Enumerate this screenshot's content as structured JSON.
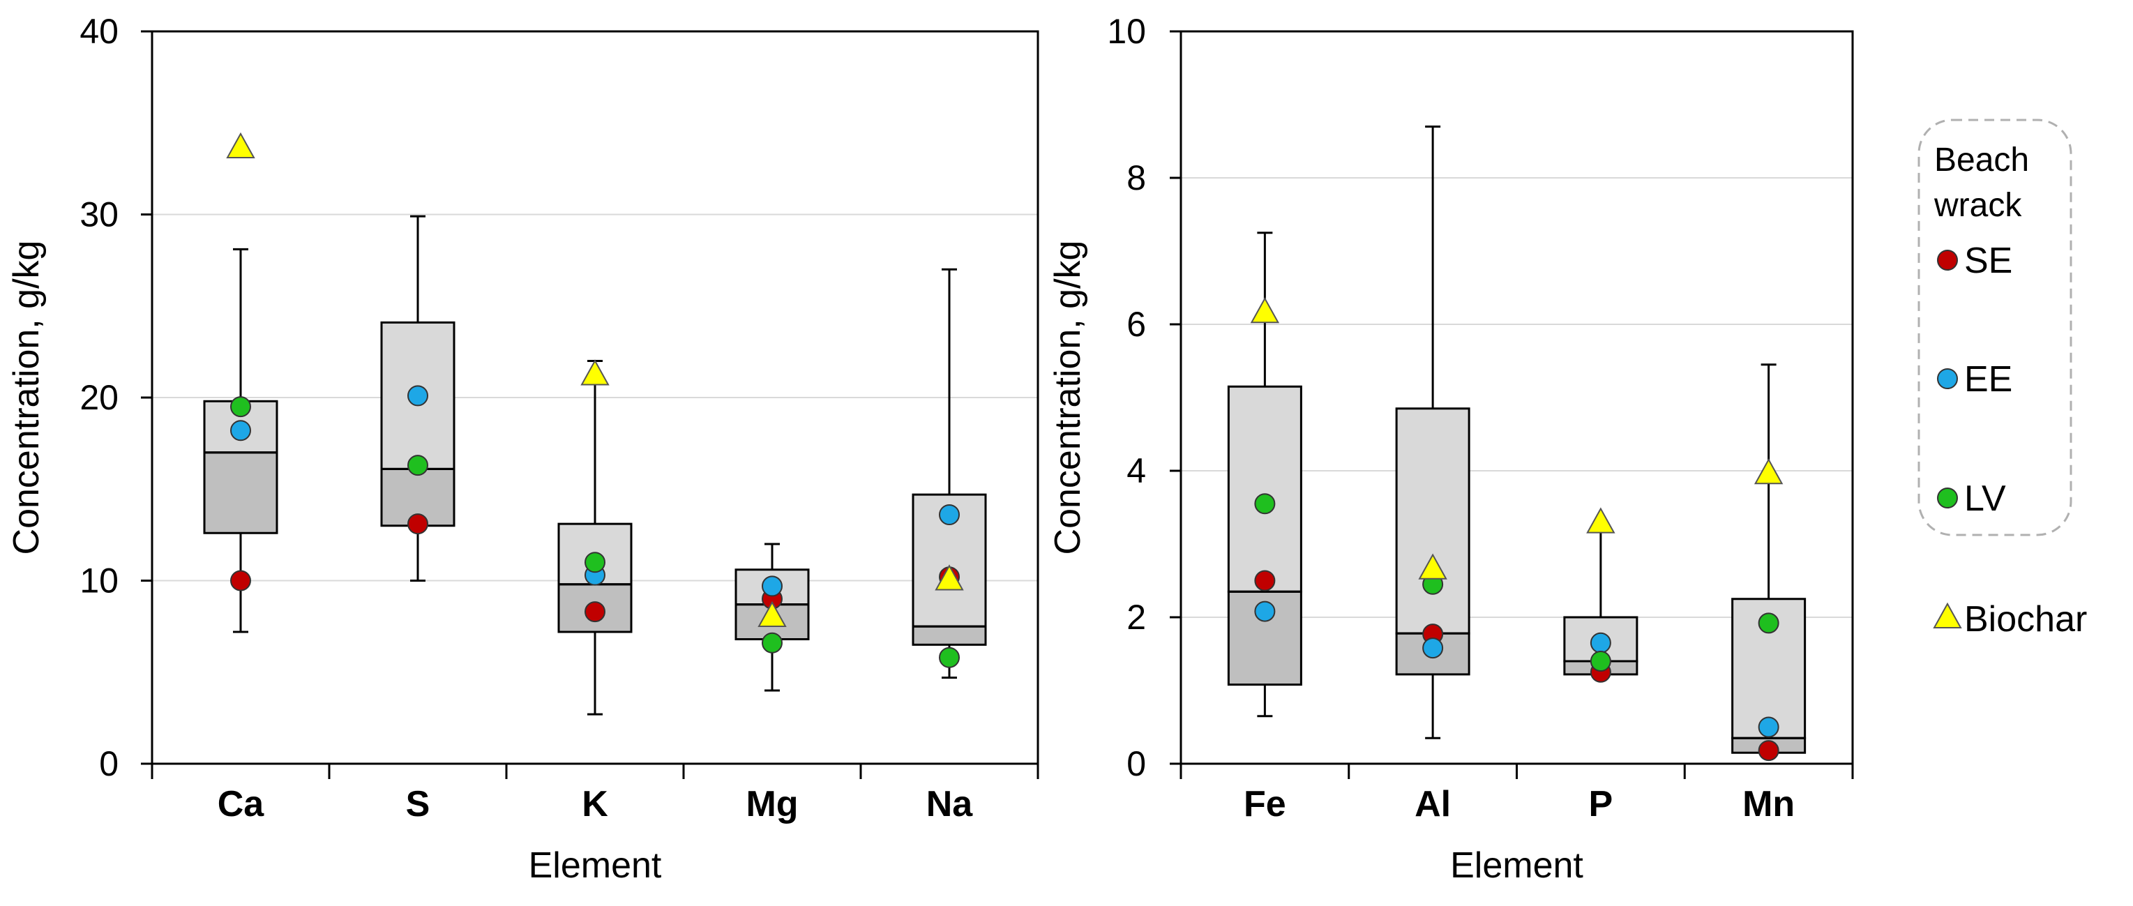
{
  "chart_data": [
    {
      "type": "box",
      "xlabel": "Element",
      "ylabel": "Concentration, g/kg",
      "ylim": [
        0,
        40
      ],
      "yticks": [
        0,
        10,
        20,
        30,
        40
      ],
      "grid": true,
      "categories": [
        "Ca",
        "S",
        "K",
        "Mg",
        "Na"
      ],
      "boxes": [
        {
          "category": "Ca",
          "min": 7.2,
          "q1": 12.6,
          "median": 17.0,
          "q3": 19.8,
          "max": 28.1
        },
        {
          "category": "S",
          "min": 10.0,
          "q1": 13.0,
          "median": 16.1,
          "q3": 24.1,
          "max": 29.9
        },
        {
          "category": "K",
          "min": 2.7,
          "q1": 7.2,
          "median": 9.8,
          "q3": 13.1,
          "max": 22.0
        },
        {
          "category": "Mg",
          "min": 4.0,
          "q1": 6.8,
          "median": 8.7,
          "q3": 10.6,
          "max": 12.0
        },
        {
          "category": "Na",
          "min": 4.7,
          "q1": 6.5,
          "median": 7.5,
          "q3": 14.7,
          "max": 27.0
        }
      ],
      "series": [
        {
          "name": "SE",
          "marker": "circle",
          "color": "#c00000",
          "values": [
            10.0,
            13.1,
            8.3,
            9.0,
            10.2
          ]
        },
        {
          "name": "EE",
          "marker": "circle",
          "color": "#1ea7e6",
          "values": [
            18.2,
            20.1,
            10.3,
            9.7,
            13.6
          ]
        },
        {
          "name": "LV",
          "marker": "circle",
          "color": "#1fbf1f",
          "values": [
            19.5,
            16.3,
            11.0,
            6.6,
            5.8
          ]
        },
        {
          "name": "Biochar",
          "marker": "triangle",
          "color": "#ffff00",
          "values": [
            33.6,
            null,
            21.2,
            8.0,
            10.0
          ]
        }
      ]
    },
    {
      "type": "box",
      "xlabel": "Element",
      "ylabel": "Concentration, g/kg",
      "ylim": [
        0,
        10
      ],
      "yticks": [
        0,
        2,
        4,
        6,
        8,
        10
      ],
      "grid": true,
      "categories": [
        "Fe",
        "Al",
        "P",
        "Mn"
      ],
      "boxes": [
        {
          "category": "Fe",
          "min": 0.65,
          "q1": 1.08,
          "median": 2.35,
          "q3": 5.15,
          "max": 7.25
        },
        {
          "category": "Al",
          "min": 0.35,
          "q1": 1.22,
          "median": 1.78,
          "q3": 4.85,
          "max": 8.7
        },
        {
          "category": "P",
          "min": 1.2,
          "q1": 1.22,
          "median": 1.4,
          "q3": 2.0,
          "max": 3.2
        },
        {
          "category": "Mn",
          "min": 0.1,
          "q1": 0.15,
          "median": 0.35,
          "q3": 2.25,
          "max": 5.45
        }
      ],
      "series": [
        {
          "name": "SE",
          "marker": "circle",
          "color": "#c00000",
          "values": [
            2.5,
            1.77,
            1.25,
            0.18
          ]
        },
        {
          "name": "EE",
          "marker": "circle",
          "color": "#1ea7e6",
          "values": [
            2.08,
            1.58,
            1.65,
            0.5
          ]
        },
        {
          "name": "LV",
          "marker": "circle",
          "color": "#1fbf1f",
          "values": [
            3.55,
            2.45,
            1.4,
            1.92
          ]
        },
        {
          "name": "Biochar",
          "marker": "triangle",
          "color": "#ffff00",
          "values": [
            6.15,
            2.65,
            3.28,
            3.95
          ]
        }
      ]
    }
  ],
  "legend": {
    "group_title": [
      "Beach",
      "wrack"
    ],
    "items": [
      {
        "label": "SE",
        "marker": "circle",
        "color": "#c00000"
      },
      {
        "label": "EE",
        "marker": "circle",
        "color": "#1ea7e6"
      },
      {
        "label": "LV",
        "marker": "circle",
        "color": "#1fbf1f"
      },
      {
        "label": "Biochar",
        "marker": "triangle",
        "color": "#ffff00"
      }
    ]
  },
  "style": {
    "box_upper_fill": "#d9d9d9",
    "box_lower_fill": "#bfbfbf",
    "grid_color": "#d9d9d9"
  }
}
